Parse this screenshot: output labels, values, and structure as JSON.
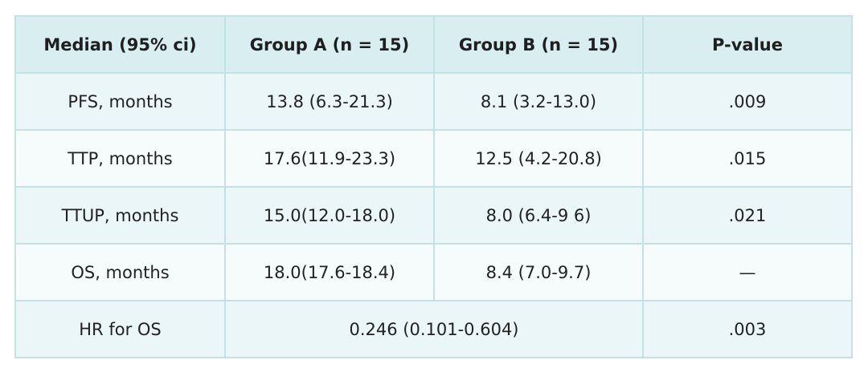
{
  "table": {
    "headers": [
      "Median (95% ci)",
      "Group A (n = 15)",
      "Group B (n = 15)",
      "P-value"
    ],
    "rows": [
      {
        "label": "PFS, months",
        "group_a": "13.8 (6.3-21.3)",
        "group_b": "8.1 (3.2-13.0)",
        "p_value": ".009"
      },
      {
        "label": "TTP, months",
        "group_a": "17.6(11.9-23.3)",
        "group_b": "12.5 (4.2-20.8)",
        "p_value": ".015"
      },
      {
        "label": "TTUP, months",
        "group_a": "15.0(12.0-18.0)",
        "group_b": "8.0 (6.4-9 6)",
        "p_value": ".021"
      },
      {
        "label": "OS, months",
        "group_a": "18.0(17.6-18.4)",
        "group_b": "8.4 (7.0-9.7)",
        "p_value": "—"
      }
    ],
    "hr_row": {
      "label": "HR for OS",
      "combined": "0.246 (0.101-0.604)",
      "p_value": ".003"
    }
  }
}
